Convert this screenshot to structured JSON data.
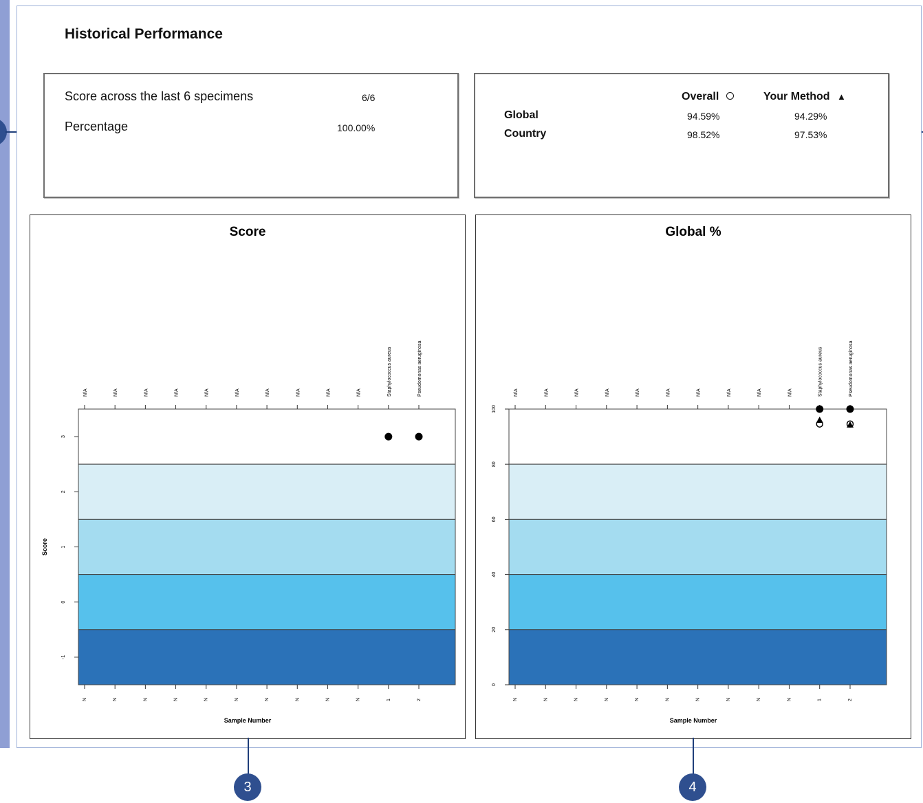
{
  "page": {
    "title": "Historical Performance"
  },
  "summary": {
    "score_label": "Score across the last 6 specimens",
    "score_value": "6/6",
    "percentage_label": "Percentage",
    "percentage_value": "100.00%"
  },
  "comparison": {
    "overall_header": "Overall",
    "your_method_header": "Your Method",
    "rows": [
      {
        "label": "Global",
        "overall": "94.59%",
        "method": "94.29%"
      },
      {
        "label": "Country",
        "overall": "98.52%",
        "method": "97.53%"
      }
    ]
  },
  "callouts": [
    "3",
    "4"
  ],
  "colors": {
    "band_top": "#ffffff",
    "band_2": "#d9eef6",
    "band_3": "#a4dcf0",
    "band_4": "#56c1ec",
    "band_bottom": "#2b72b8"
  },
  "chart_data": [
    {
      "type": "scatter",
      "title": "Score",
      "xlabel": "Sample Number",
      "ylabel": "Score",
      "x_tick_labels": [
        "N",
        "N",
        "N",
        "N",
        "N",
        "N",
        "N",
        "N",
        "N",
        "N",
        "1",
        "2"
      ],
      "top_labels": [
        "N/A",
        "N/A",
        "N/A",
        "N/A",
        "N/A",
        "N/A",
        "N/A",
        "N/A",
        "N/A",
        "N/A",
        "Staphylococcus aureus",
        "Pseudomonas aeruginosa"
      ],
      "y_ticks": [
        3,
        2,
        1,
        0,
        -1
      ],
      "ylim": [
        -1.5,
        3.5
      ],
      "bands": [
        3.5,
        2.5,
        1.5,
        0.5,
        -0.5,
        -1.5
      ],
      "series": [
        {
          "name": "",
          "marker": "filled-circle",
          "points": [
            [
              11,
              3
            ],
            [
              12,
              3
            ]
          ]
        }
      ]
    },
    {
      "type": "scatter",
      "title": "Global %",
      "xlabel": "Sample Number",
      "ylabel": "",
      "x_tick_labels": [
        "N",
        "N",
        "N",
        "N",
        "N",
        "N",
        "N",
        "N",
        "N",
        "N",
        "1",
        "2"
      ],
      "top_labels": [
        "N/A",
        "N/A",
        "N/A",
        "N/A",
        "N/A",
        "N/A",
        "N/A",
        "N/A",
        "N/A",
        "N/A",
        "Staphylococcus aureus",
        "Pseudomonas aeruginosa"
      ],
      "y_ticks": [
        100,
        80,
        60,
        40,
        20,
        0
      ],
      "ylim": [
        0,
        100
      ],
      "bands": [
        100,
        80,
        60,
        40,
        20,
        0
      ],
      "series": [
        {
          "name": "",
          "marker": "filled-circle",
          "points": [
            [
              11,
              100
            ],
            [
              12,
              100
            ]
          ]
        },
        {
          "name": "Overall",
          "marker": "open-circle",
          "points": [
            [
              11,
              94.59
            ],
            [
              12,
              94.59
            ]
          ]
        },
        {
          "name": "Your Method",
          "marker": "triangle",
          "points": [
            [
              11,
              96
            ],
            [
              12,
              94.29
            ]
          ]
        }
      ]
    }
  ]
}
